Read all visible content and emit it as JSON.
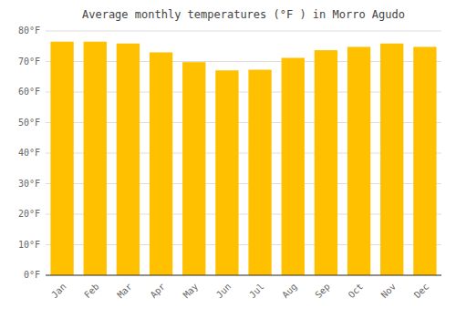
{
  "chart_data": {
    "type": "bar",
    "title": "Average monthly temperatures (°F ) in Morro Agudo",
    "categories": [
      "Jan",
      "Feb",
      "Mar",
      "Apr",
      "May",
      "Jun",
      "Jul",
      "Aug",
      "Sep",
      "Oct",
      "Nov",
      "Dec"
    ],
    "values": [
      76.5,
      76.5,
      75.9,
      73.0,
      69.8,
      67.1,
      67.3,
      71.2,
      73.7,
      74.8,
      75.9,
      74.8
    ],
    "color": "#FFC000",
    "ylim": [
      0,
      80
    ],
    "yticks": [
      {
        "value": 0,
        "label": "0°F"
      },
      {
        "value": 10,
        "label": "10°F"
      },
      {
        "value": 20,
        "label": "20°F"
      },
      {
        "value": 30,
        "label": "30°F"
      },
      {
        "value": 40,
        "label": "40°F"
      },
      {
        "value": 50,
        "label": "50°F"
      },
      {
        "value": 60,
        "label": "60°F"
      },
      {
        "value": 70,
        "label": "70°F"
      },
      {
        "value": 80,
        "label": "80°F"
      }
    ],
    "grid": true
  }
}
